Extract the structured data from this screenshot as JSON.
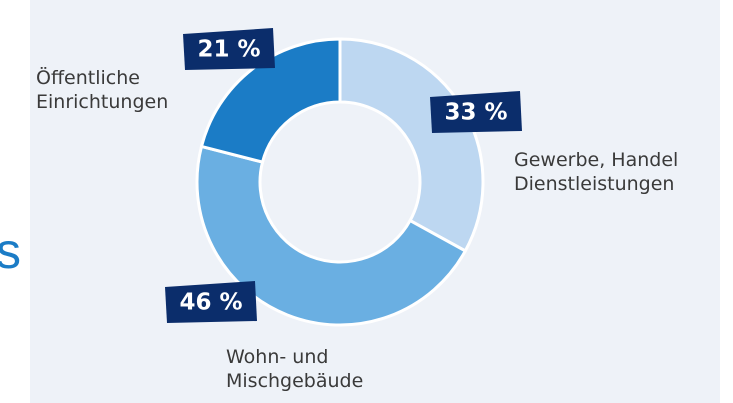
{
  "side_text": "s",
  "chart_data": {
    "type": "donut",
    "categories": [
      "Gewerbe, Handel\nDienstleistungen",
      "Wohn- und\nMischgebäude",
      "Öffentliche\nEinrichtungen"
    ],
    "values": [
      33,
      46,
      21
    ],
    "value_labels": [
      "33 %",
      "46 %",
      "21 %"
    ],
    "colors": [
      "#bdd7f1",
      "#6aafe2",
      "#1b7cc6"
    ]
  }
}
